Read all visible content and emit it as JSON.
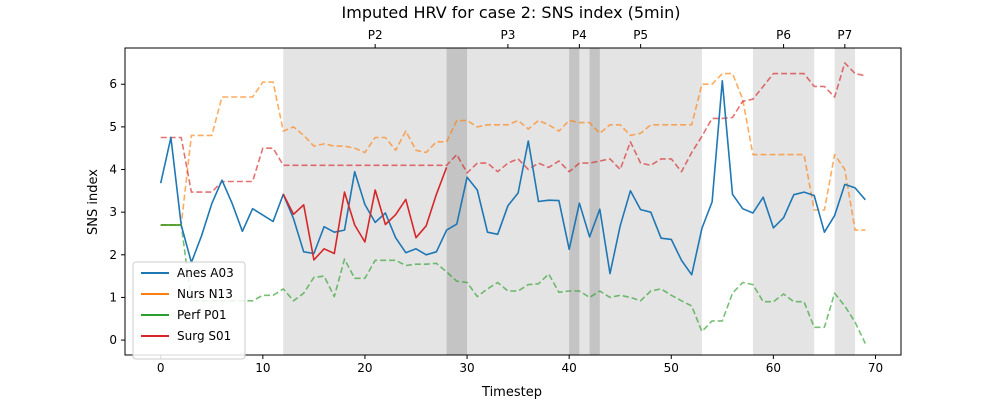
{
  "chart_data": {
    "type": "line",
    "title": "Imputed HRV for case 2: SNS index (5min)",
    "xlabel": "Timestep",
    "ylabel": "SNS index",
    "xlim": [
      -3.5,
      72.5
    ],
    "ylim": [
      -0.35,
      6.85
    ],
    "xticks": [
      0,
      10,
      20,
      30,
      40,
      50,
      60,
      70
    ],
    "yticks": [
      0,
      1,
      2,
      3,
      4,
      5,
      6
    ],
    "grid": false,
    "legend_position": "lower-left",
    "phases": [
      {
        "label": "",
        "start": 12,
        "end": 53,
        "shade": "light"
      },
      {
        "label": "P2",
        "start": 28,
        "end": 30,
        "shade": "dark"
      },
      {
        "label": "P3",
        "start": 40,
        "end": 41,
        "shade": "dark"
      },
      {
        "label": "P4",
        "start": 42,
        "end": 43,
        "shade": "dark"
      },
      {
        "label": "P5",
        "start": 58,
        "end": 64,
        "shade": "light"
      },
      {
        "label": "P6",
        "start": 66,
        "end": 68,
        "shade": "light"
      }
    ],
    "top_ticks": [
      {
        "label": "P2",
        "x": 21
      },
      {
        "label": "P3",
        "x": 34
      },
      {
        "label": "P4",
        "x": 41
      },
      {
        "label": "P5",
        "x": 47
      },
      {
        "label": "P6",
        "x": 61
      },
      {
        "label": "P7",
        "x": 67
      }
    ],
    "series": [
      {
        "name": "Anes A03",
        "color": "#1f77b4",
        "style": "solid",
        "x": [
          0,
          1,
          2,
          3,
          4,
          5,
          6,
          7,
          8,
          9,
          10,
          11,
          12,
          13,
          14,
          15,
          16,
          17,
          18,
          19,
          20,
          21,
          22,
          23,
          24,
          25,
          26,
          27,
          28,
          29,
          30,
          31,
          32,
          33,
          34,
          35,
          36,
          37,
          38,
          39,
          40,
          41,
          42,
          43,
          44,
          45,
          46,
          47,
          48,
          49,
          50,
          51,
          52,
          53,
          54,
          55,
          56,
          57,
          58,
          59,
          60,
          61,
          62,
          63,
          64,
          65,
          66,
          67,
          68,
          69
        ],
        "values": [
          3.68,
          4.75,
          2.7,
          1.82,
          2.45,
          3.2,
          3.75,
          3.2,
          2.55,
          3.08,
          2.93,
          2.78,
          3.42,
          2.85,
          2.07,
          2.03,
          2.66,
          2.53,
          2.58,
          3.95,
          3.18,
          2.76,
          2.98,
          2.4,
          2.05,
          2.14,
          2.0,
          2.07,
          2.58,
          2.72,
          3.82,
          3.52,
          2.53,
          2.48,
          3.15,
          3.45,
          4.67,
          3.25,
          3.28,
          3.27,
          2.13,
          3.21,
          2.42,
          3.07,
          1.56,
          2.68,
          3.5,
          3.06,
          3.0,
          2.39,
          2.36,
          1.87,
          1.53,
          2.62,
          3.24,
          6.08,
          3.42,
          3.08,
          2.98,
          3.35,
          2.63,
          2.87,
          3.41,
          3.47,
          3.39,
          2.53,
          2.92,
          3.65,
          3.57,
          3.29
        ]
      },
      {
        "name": "Nurs N13",
        "color": "#ff7f0e",
        "style": "solid",
        "x": [
          0,
          1,
          2
        ],
        "values": [
          2.7,
          2.7,
          2.7
        ]
      },
      {
        "name": "Perf P01",
        "color": "#2ca02c",
        "style": "solid",
        "x": [
          0,
          1,
          2
        ],
        "values": [
          2.7,
          2.7,
          2.7
        ]
      },
      {
        "name": "Surg S01",
        "color": "#d62728",
        "style": "solid",
        "x": [
          12,
          13,
          14,
          15,
          16,
          17,
          18,
          19,
          20,
          21,
          22,
          23,
          24,
          25,
          26,
          27,
          28
        ],
        "values": [
          3.42,
          2.95,
          3.17,
          1.88,
          2.14,
          2.03,
          3.47,
          2.7,
          2.3,
          3.52,
          2.71,
          2.94,
          3.3,
          2.4,
          2.68,
          3.42,
          4.05
        ]
      },
      {
        "name": "",
        "color": "#ff7f0e",
        "style": "dashed",
        "x": [
          0,
          1,
          2,
          3,
          4,
          5,
          6,
          7,
          8,
          9,
          10,
          11,
          12,
          13,
          14,
          15,
          16,
          17,
          18,
          19,
          20,
          21,
          22,
          23,
          24,
          25,
          26,
          27,
          28,
          29,
          30,
          31,
          32,
          33,
          34,
          35,
          36,
          37,
          38,
          39,
          40,
          41,
          42,
          43,
          44,
          45,
          46,
          47,
          48,
          49,
          50,
          51,
          52,
          53,
          54,
          55,
          56,
          57,
          58,
          59,
          60,
          61,
          62,
          63,
          64,
          65,
          66,
          67,
          68,
          69
        ],
        "values": [
          2.7,
          2.7,
          2.7,
          4.8,
          4.8,
          4.8,
          5.7,
          5.7,
          5.7,
          5.7,
          6.05,
          6.05,
          4.9,
          5.0,
          4.8,
          4.55,
          4.6,
          4.55,
          4.55,
          4.5,
          4.4,
          4.75,
          4.75,
          4.45,
          4.9,
          4.45,
          4.4,
          4.65,
          4.65,
          5.15,
          5.15,
          5.0,
          5.05,
          5.05,
          5.05,
          5.15,
          4.95,
          5.15,
          5.05,
          4.9,
          5.15,
          5.1,
          5.1,
          4.85,
          5.05,
          5.05,
          4.8,
          4.85,
          5.05,
          5.05,
          5.05,
          5.05,
          5.05,
          6.0,
          6.0,
          6.25,
          6.25,
          5.65,
          4.35,
          4.35,
          4.35,
          4.35,
          4.35,
          4.35,
          3.05,
          3.05,
          4.35,
          4.0,
          2.58,
          2.58
        ]
      },
      {
        "name": "",
        "color": "#d62728",
        "style": "dashed",
        "x": [
          0,
          1,
          2,
          3,
          4,
          5,
          6,
          7,
          8,
          9,
          10,
          11,
          12,
          13,
          14,
          15,
          16,
          17,
          18,
          19,
          20,
          21,
          22,
          23,
          24,
          25,
          26,
          27,
          28,
          29,
          30,
          31,
          32,
          33,
          34,
          35,
          36,
          37,
          38,
          39,
          40,
          41,
          42,
          43,
          44,
          45,
          46,
          47,
          48,
          49,
          50,
          51,
          52,
          53,
          54,
          55,
          56,
          57,
          58,
          59,
          60,
          61,
          62,
          63,
          64,
          65,
          66,
          67,
          68,
          69
        ],
        "values": [
          4.75,
          4.75,
          4.75,
          3.47,
          3.47,
          3.47,
          3.72,
          3.72,
          3.72,
          3.72,
          4.5,
          4.5,
          4.1,
          4.1,
          4.1,
          4.1,
          4.1,
          4.1,
          4.1,
          4.1,
          4.1,
          4.1,
          4.1,
          4.1,
          4.1,
          4.1,
          4.1,
          4.1,
          4.1,
          4.35,
          3.92,
          4.15,
          4.15,
          3.95,
          4.15,
          4.25,
          4.0,
          4.15,
          4.05,
          4.2,
          3.95,
          4.15,
          4.15,
          4.2,
          4.25,
          4.0,
          4.65,
          4.15,
          4.1,
          4.25,
          4.25,
          3.95,
          4.4,
          4.78,
          5.2,
          5.2,
          5.22,
          5.6,
          5.65,
          5.95,
          6.25,
          6.25,
          6.25,
          6.25,
          5.95,
          5.95,
          5.7,
          6.5,
          6.25,
          6.2
        ]
      },
      {
        "name": "",
        "color": "#2ca02c",
        "style": "dashed",
        "x": [
          0,
          1,
          2,
          3,
          4,
          5,
          6,
          7,
          8,
          9,
          10,
          11,
          12,
          13,
          14,
          15,
          16,
          17,
          18,
          19,
          20,
          21,
          22,
          23,
          24,
          25,
          26,
          27,
          28,
          29,
          30,
          31,
          32,
          33,
          34,
          35,
          36,
          37,
          38,
          39,
          40,
          41,
          42,
          43,
          44,
          45,
          46,
          47,
          48,
          49,
          50,
          51,
          52,
          53,
          54,
          55,
          56,
          57,
          58,
          59,
          60,
          61,
          62,
          63,
          64,
          65,
          66,
          67,
          68,
          69
        ],
        "values": [
          2.7,
          2.7,
          2.7,
          0.92,
          0.92,
          0.92,
          0.92,
          0.92,
          0.92,
          0.92,
          1.05,
          1.05,
          1.2,
          0.92,
          1.1,
          1.47,
          1.5,
          1.02,
          1.9,
          1.45,
          1.45,
          1.87,
          1.87,
          1.87,
          1.75,
          1.78,
          1.78,
          1.8,
          1.6,
          1.38,
          1.35,
          1.02,
          1.2,
          1.35,
          1.15,
          1.15,
          1.3,
          1.32,
          1.55,
          1.12,
          1.15,
          1.15,
          1.0,
          1.15,
          1.0,
          1.05,
          1.0,
          0.92,
          1.15,
          1.2,
          1.05,
          0.92,
          0.8,
          0.2,
          0.45,
          0.45,
          1.1,
          1.35,
          1.3,
          0.9,
          0.9,
          1.08,
          0.9,
          0.9,
          0.3,
          0.3,
          1.1,
          0.8,
          0.42,
          -0.08
        ]
      }
    ]
  }
}
